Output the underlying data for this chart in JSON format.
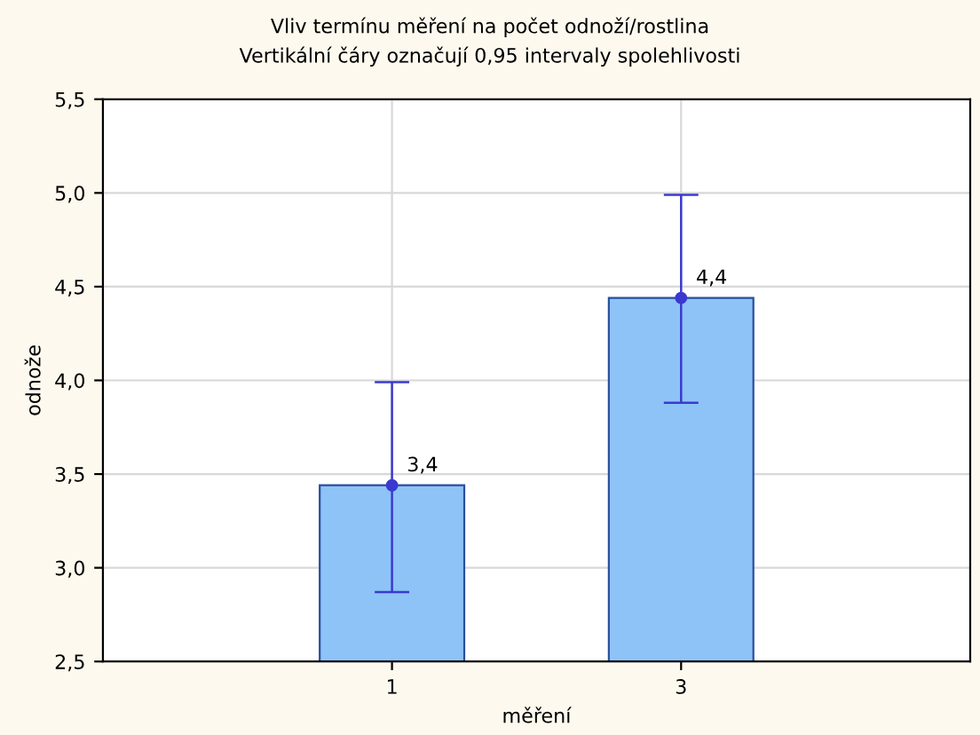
{
  "chart_data": {
    "type": "bar",
    "title": "Vliv termínu měření na počet odnoží/rostlina",
    "subtitle": "Vertikální čáry označují 0,95 intervaly spolehlivosti",
    "xlabel": "měření",
    "ylabel": "odnože",
    "categories": [
      "1",
      "3"
    ],
    "series": [
      {
        "color": "#8ec3f7",
        "values": [
          3.44,
          4.44
        ],
        "errors": [
          [
            2.87,
            3.99
          ],
          [
            3.88,
            4.99
          ]
        ],
        "value_labels": [
          "3,4",
          "4,4"
        ]
      },
      {
        "type": "scatter",
        "x": [
          "1",
          "3"
        ],
        "color": "#3a3ad0",
        "values": [
          3.44,
          4.44
        ]
      }
    ],
    "ylim": [
      2.5,
      5.5
    ],
    "yticks": [
      {
        "value": 2.5,
        "label": "2,5"
      },
      {
        "value": 3.0,
        "label": "3,0"
      },
      {
        "value": 3.5,
        "label": "3,5"
      },
      {
        "value": 4.0,
        "label": "4,0"
      },
      {
        "value": 4.5,
        "label": "4,5"
      },
      {
        "value": 5.0,
        "label": "5,0"
      },
      {
        "value": 5.5,
        "label": "5,5"
      }
    ],
    "grid": true,
    "marker": "circle"
  }
}
